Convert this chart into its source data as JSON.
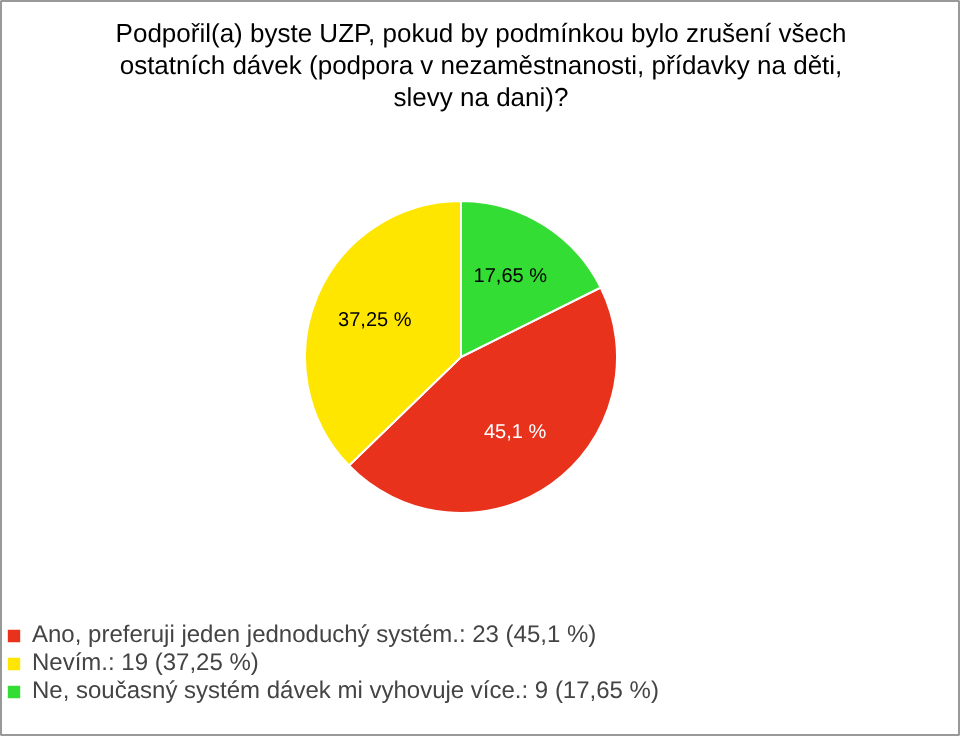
{
  "chart_data": {
    "type": "pie",
    "title": "Podpořil(a) byste UZP, pokud by podmínkou bylo zrušení všech ostatních dávek (podpora v nezaměstnanosti, přídavky na děti, slevy na dani)?",
    "categories": [
      "Ano, preferuji jeden jednoduchý systém.: 23 (45,1 %)",
      "Nevím.: 19 (37,25 %)",
      "Ne, současný systém dávek mi vyhovuje více.: 9 (17,65 %)"
    ],
    "values": [
      45.1,
      37.25,
      17.65
    ],
    "value_labels": [
      "45,1 %",
      "37,25 %",
      "17,65 %"
    ],
    "colors": [
      "#e8321c",
      "#ffe600",
      "#33dd33"
    ],
    "legend": "bottom"
  }
}
